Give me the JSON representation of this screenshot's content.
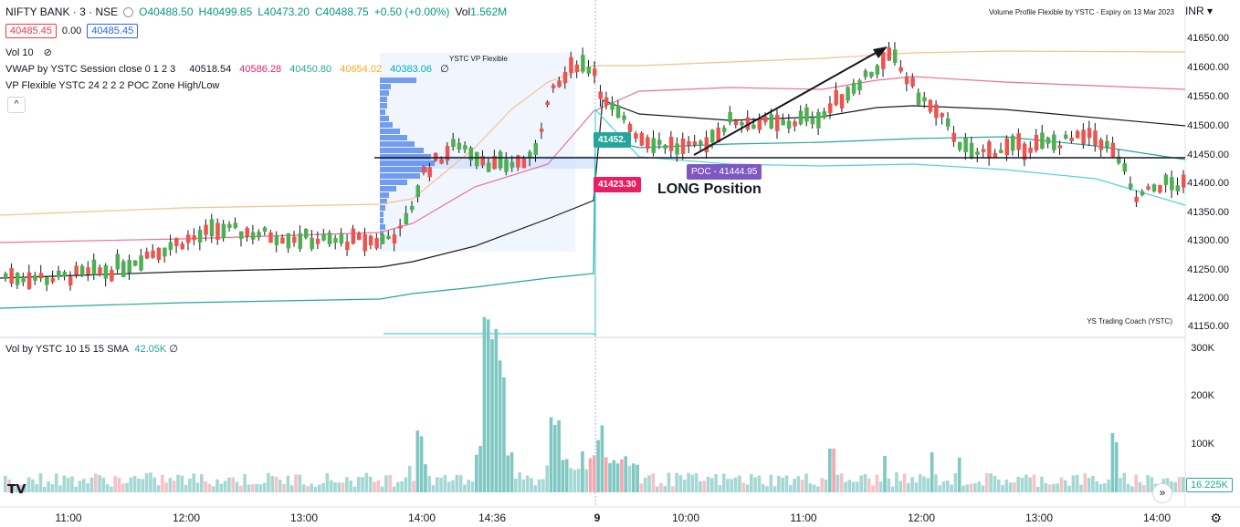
{
  "header": {
    "symbol": "NIFTY BANK · 3 · NSE",
    "ohlc": {
      "o": "O40488.50",
      "h": "H40499.85",
      "l": "L40473.20",
      "c": "C40488.75",
      "chg": "+0.50 (+0.00%)",
      "vol": "Vol",
      "vol_val": "1.562M"
    },
    "sell_price": "40485.45",
    "spread": "0.00",
    "buy_price": "40485.45"
  },
  "indicators": {
    "vol_label": "Vol 10",
    "vwap": {
      "label": "VWAP by YSTC Session close 0 1 2 3",
      "v1": "40518.54",
      "v2": "40586.28",
      "v3": "40450.80",
      "v4": "40654.02",
      "v5": "40383.06",
      "v6": "∅"
    },
    "vp_label": "VP Flexible YSTC 24 2 2 2 POC Zone High/Low",
    "collapse_icon": "^"
  },
  "overlay_text": {
    "top_right_title": "Volume Profile Flexible by YSTC - Expiry on 13 Mar 2023",
    "currency": "INR",
    "currency_icon": "chevron-down",
    "coach": "YS Trading Coach (YSTC)",
    "vp_tag": "YSTC VP Flexible",
    "long_label": "LONG Position",
    "tag_green": "41452.",
    "tag_red": "41423.30",
    "tag_poc": "POC - 41444.95"
  },
  "volume_pane": {
    "title": "Vol by YSTC 10 15 15 SMA",
    "value": "42.05K",
    "value_suffix": "∅",
    "current": "16.225K"
  },
  "y_axis": {
    "price_ticks": [
      "41650.00",
      "41600.00",
      "41550.00",
      "41500.00",
      "41450.00",
      "41400.00",
      "41350.00",
      "41300.00",
      "41250.00",
      "41200.00",
      "41150.00"
    ],
    "volume_ticks": [
      "300K",
      "200K",
      "100K"
    ]
  },
  "x_axis": {
    "ticks": [
      "11:00",
      "12:00",
      "13:00",
      "14:00",
      "14:36",
      "9",
      "10:00",
      "11:00",
      "12:00",
      "13:00",
      "14:00"
    ]
  },
  "colors": {
    "up": "#4caf50",
    "down": "#ef5350",
    "vol_up": "#7fc7c2",
    "vol_down": "#f4a6ad",
    "poc": "#7e57c2",
    "tag_green": "#26a69a",
    "tag_red": "#e91e63"
  },
  "icons": {
    "tv_logo": "tradingview-logo",
    "scroll": "double-chevron-right-icon",
    "settings": "gear-icon",
    "eye": "eye-off-icon"
  }
}
